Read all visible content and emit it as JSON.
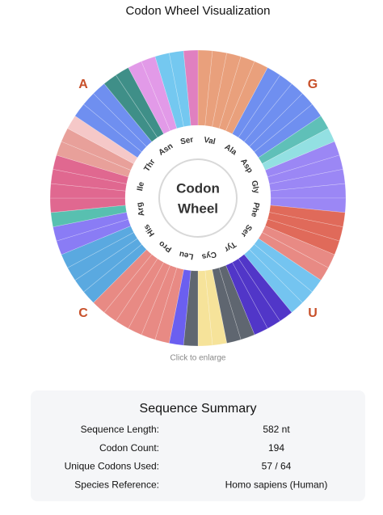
{
  "header": {
    "title": "Codon Wheel Visualization"
  },
  "wheel": {
    "center_label": [
      "Codon",
      "Wheel"
    ],
    "corners": [
      "A",
      "G",
      "C",
      "U"
    ],
    "amino_acids": [
      "Ser",
      "Val",
      "Ala",
      "Asp",
      "Gly",
      "Phe",
      "Ser",
      "Tyr",
      "Cys",
      "Leu",
      "Pro",
      "His",
      "Arg",
      "Ile",
      "Thr",
      "Asn"
    ],
    "caption": "Click to enlarge"
  },
  "summary": {
    "title": "Sequence Summary",
    "rows": [
      [
        "Sequence Length:",
        "582 nt"
      ],
      [
        "Codon Count:",
        "194"
      ],
      [
        "Unique Codons Used:",
        "57 / 64"
      ],
      [
        "Species Reference:",
        "Homo sapiens (Human)"
      ]
    ]
  }
}
